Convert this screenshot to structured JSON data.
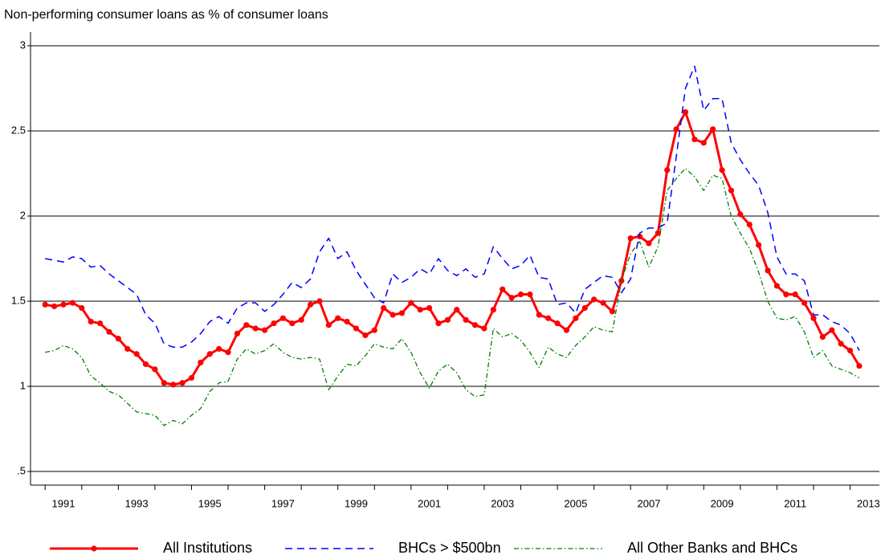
{
  "chart_data": {
    "type": "line",
    "title": "Non-performing consumer loans as % of consumer loans",
    "x": [
      1991.0,
      1991.25,
      1991.5,
      1991.75,
      1992.0,
      1992.25,
      1992.5,
      1992.75,
      1993.0,
      1993.25,
      1993.5,
      1993.75,
      1994.0,
      1994.25,
      1994.5,
      1994.75,
      1995.0,
      1995.25,
      1995.5,
      1995.75,
      1996.0,
      1996.25,
      1996.5,
      1996.75,
      1997.0,
      1997.25,
      1997.5,
      1997.75,
      1998.0,
      1998.25,
      1998.5,
      1998.75,
      1999.0,
      1999.25,
      1999.5,
      1999.75,
      2000.0,
      2000.25,
      2000.5,
      2000.75,
      2001.0,
      2001.25,
      2001.5,
      2001.75,
      2002.0,
      2002.25,
      2002.5,
      2002.75,
      2003.0,
      2003.25,
      2003.5,
      2003.75,
      2004.0,
      2004.25,
      2004.5,
      2004.75,
      2005.0,
      2005.25,
      2005.5,
      2005.75,
      2006.0,
      2006.25,
      2006.5,
      2006.75,
      2007.0,
      2007.25,
      2007.5,
      2007.75,
      2008.0,
      2008.25,
      2008.5,
      2008.75,
      2009.0,
      2009.25,
      2009.5,
      2009.75,
      2010.0,
      2010.25,
      2010.5,
      2010.75,
      2011.0,
      2011.25,
      2011.5,
      2011.75,
      2012.0,
      2012.25,
      2012.5,
      2012.75,
      2013.0,
      2013.25
    ],
    "series": [
      {
        "name": "All Institutions",
        "color": "#ff0000",
        "style": "solid-markers",
        "values": [
          1.48,
          1.47,
          1.48,
          1.49,
          1.46,
          1.38,
          1.37,
          1.32,
          1.28,
          1.22,
          1.19,
          1.13,
          1.1,
          1.02,
          1.01,
          1.02,
          1.05,
          1.14,
          1.19,
          1.22,
          1.2,
          1.31,
          1.36,
          1.34,
          1.33,
          1.37,
          1.4,
          1.37,
          1.39,
          1.48,
          1.5,
          1.36,
          1.4,
          1.38,
          1.34,
          1.3,
          1.33,
          1.46,
          1.42,
          1.43,
          1.49,
          1.45,
          1.46,
          1.37,
          1.39,
          1.45,
          1.39,
          1.36,
          1.34,
          1.45,
          1.57,
          1.52,
          1.54,
          1.54,
          1.42,
          1.4,
          1.37,
          1.33,
          1.4,
          1.46,
          1.51,
          1.49,
          1.44,
          1.62,
          1.87,
          1.88,
          1.84,
          1.9,
          2.27,
          2.51,
          2.61,
          2.45,
          2.43,
          2.51,
          2.27,
          2.15,
          2.01,
          1.95,
          1.83,
          1.68,
          1.59,
          1.54,
          1.54,
          1.49,
          1.4,
          1.29,
          1.33,
          1.25,
          1.21,
          1.12
        ]
      },
      {
        "name": "BHCs > $500bn",
        "color": "#0000ff",
        "style": "dashed",
        "values": [
          1.75,
          1.74,
          1.73,
          1.76,
          1.75,
          1.7,
          1.71,
          1.66,
          1.62,
          1.58,
          1.54,
          1.42,
          1.37,
          1.25,
          1.23,
          1.23,
          1.26,
          1.31,
          1.38,
          1.41,
          1.37,
          1.46,
          1.49,
          1.49,
          1.44,
          1.48,
          1.54,
          1.61,
          1.58,
          1.63,
          1.79,
          1.87,
          1.75,
          1.79,
          1.68,
          1.6,
          1.52,
          1.49,
          1.66,
          1.61,
          1.64,
          1.69,
          1.66,
          1.75,
          1.68,
          1.65,
          1.69,
          1.64,
          1.66,
          1.82,
          1.75,
          1.69,
          1.71,
          1.77,
          1.64,
          1.63,
          1.48,
          1.49,
          1.43,
          1.57,
          1.61,
          1.65,
          1.64,
          1.55,
          1.63,
          1.9,
          1.93,
          1.93,
          1.96,
          2.35,
          2.75,
          2.88,
          2.62,
          2.69,
          2.69,
          2.43,
          2.33,
          2.25,
          2.18,
          2.02,
          1.76,
          1.66,
          1.66,
          1.62,
          1.42,
          1.42,
          1.38,
          1.36,
          1.31,
          1.21
        ]
      },
      {
        "name": "All Other Banks and BHCs",
        "color": "#008000",
        "style": "dashdot",
        "values": [
          1.2,
          1.21,
          1.24,
          1.22,
          1.17,
          1.06,
          1.02,
          0.97,
          0.95,
          0.9,
          0.85,
          0.84,
          0.83,
          0.77,
          0.8,
          0.78,
          0.83,
          0.87,
          0.97,
          1.02,
          1.03,
          1.16,
          1.22,
          1.19,
          1.21,
          1.25,
          1.2,
          1.17,
          1.16,
          1.17,
          1.16,
          0.98,
          1.06,
          1.13,
          1.12,
          1.18,
          1.25,
          1.23,
          1.22,
          1.28,
          1.2,
          1.08,
          0.99,
          1.09,
          1.13,
          1.08,
          0.98,
          0.94,
          0.95,
          1.34,
          1.29,
          1.31,
          1.27,
          1.2,
          1.11,
          1.23,
          1.19,
          1.17,
          1.24,
          1.29,
          1.35,
          1.33,
          1.32,
          1.62,
          1.78,
          1.85,
          1.7,
          1.82,
          2.15,
          2.22,
          2.28,
          2.23,
          2.15,
          2.24,
          2.22,
          2.0,
          1.9,
          1.81,
          1.67,
          1.5,
          1.4,
          1.39,
          1.41,
          1.32,
          1.17,
          1.21,
          1.12,
          1.1,
          1.08,
          1.05
        ]
      }
    ],
    "xlim": [
      1990.6,
      2013.8
    ],
    "xticks": [
      1991,
      1993,
      1995,
      1997,
      1999,
      2001,
      2003,
      2005,
      2007,
      2009,
      2011,
      2013
    ],
    "ylim": [
      0.42,
      3.08
    ],
    "yticks": [
      3,
      2.5,
      2,
      1.5,
      1,
      {
        "value": 0.5,
        "label": ".5"
      }
    ],
    "grid": true,
    "legend": "bottom"
  }
}
